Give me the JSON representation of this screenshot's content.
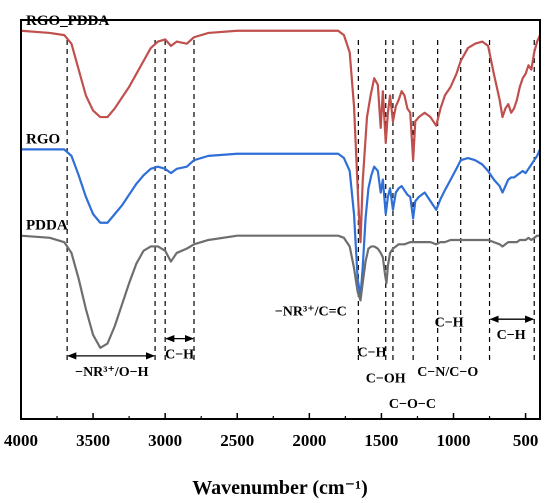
{
  "chart_data": {
    "type": "line",
    "title": "",
    "xlabel": "Wavenumber (cm⁻¹)",
    "ylabel": "",
    "xlim": [
      4000,
      400
    ],
    "x_reversed": true,
    "x_ticks": [
      "4000",
      "3500",
      "3000",
      "2500",
      "2000",
      "1500",
      "1000",
      "500"
    ],
    "y_ticks_shown": false,
    "grid": false,
    "series": [
      {
        "name": "RGO_PDDA",
        "color": "#c0504d",
        "offset": 0.55,
        "points": [
          [
            4000,
            0.0
          ],
          [
            3800,
            -0.01
          ],
          [
            3700,
            -0.02
          ],
          [
            3650,
            -0.06
          ],
          [
            3600,
            -0.18
          ],
          [
            3550,
            -0.3
          ],
          [
            3500,
            -0.37
          ],
          [
            3450,
            -0.4
          ],
          [
            3400,
            -0.4
          ],
          [
            3350,
            -0.36
          ],
          [
            3300,
            -0.31
          ],
          [
            3250,
            -0.26
          ],
          [
            3200,
            -0.2
          ],
          [
            3150,
            -0.14
          ],
          [
            3100,
            -0.08
          ],
          [
            3050,
            -0.05
          ],
          [
            3000,
            -0.04
          ],
          [
            2960,
            -0.07
          ],
          [
            2920,
            -0.05
          ],
          [
            2850,
            -0.06
          ],
          [
            2800,
            -0.03
          ],
          [
            2700,
            -0.01
          ],
          [
            2500,
            0.0
          ],
          [
            2300,
            0.0
          ],
          [
            2100,
            0.0
          ],
          [
            1900,
            0.0
          ],
          [
            1800,
            0.0
          ],
          [
            1760,
            -0.02
          ],
          [
            1720,
            -0.1
          ],
          [
            1690,
            -0.35
          ],
          [
            1660,
            -0.8
          ],
          [
            1645,
            -0.98
          ],
          [
            1630,
            -0.7
          ],
          [
            1600,
            -0.4
          ],
          [
            1575,
            -0.3
          ],
          [
            1550,
            -0.22
          ],
          [
            1525,
            -0.25
          ],
          [
            1505,
            -0.45
          ],
          [
            1490,
            -0.28
          ],
          [
            1470,
            -0.52
          ],
          [
            1455,
            -0.38
          ],
          [
            1440,
            -0.3
          ],
          [
            1420,
            -0.42
          ],
          [
            1400,
            -0.35
          ],
          [
            1380,
            -0.32
          ],
          [
            1360,
            -0.28
          ],
          [
            1340,
            -0.3
          ],
          [
            1320,
            -0.36
          ],
          [
            1300,
            -0.38
          ],
          [
            1280,
            -0.6
          ],
          [
            1265,
            -0.42
          ],
          [
            1240,
            -0.4
          ],
          [
            1200,
            -0.38
          ],
          [
            1160,
            -0.4
          ],
          [
            1120,
            -0.44
          ],
          [
            1090,
            -0.36
          ],
          [
            1060,
            -0.3
          ],
          [
            1020,
            -0.26
          ],
          [
            980,
            -0.2
          ],
          [
            950,
            -0.14
          ],
          [
            900,
            -0.08
          ],
          [
            850,
            -0.06
          ],
          [
            800,
            -0.05
          ],
          [
            760,
            -0.07
          ],
          [
            720,
            -0.2
          ],
          [
            680,
            -0.32
          ],
          [
            660,
            -0.4
          ],
          [
            640,
            -0.36
          ],
          [
            620,
            -0.34
          ],
          [
            600,
            -0.38
          ],
          [
            580,
            -0.36
          ],
          [
            560,
            -0.32
          ],
          [
            540,
            -0.26
          ],
          [
            520,
            -0.22
          ],
          [
            500,
            -0.2
          ],
          [
            480,
            -0.16
          ],
          [
            460,
            -0.18
          ],
          [
            440,
            -0.1
          ],
          [
            420,
            -0.05
          ],
          [
            400,
            -0.02
          ]
        ]
      },
      {
        "name": "RGO",
        "color": "#2f6fd6",
        "offset": 0.0,
        "points": [
          [
            4000,
            0.0
          ],
          [
            3800,
            0.0
          ],
          [
            3700,
            0.0
          ],
          [
            3650,
            -0.03
          ],
          [
            3600,
            -0.12
          ],
          [
            3550,
            -0.22
          ],
          [
            3500,
            -0.3
          ],
          [
            3450,
            -0.34
          ],
          [
            3400,
            -0.34
          ],
          [
            3350,
            -0.3
          ],
          [
            3300,
            -0.26
          ],
          [
            3250,
            -0.21
          ],
          [
            3200,
            -0.16
          ],
          [
            3150,
            -0.12
          ],
          [
            3100,
            -0.09
          ],
          [
            3050,
            -0.08
          ],
          [
            3000,
            -0.09
          ],
          [
            2960,
            -0.11
          ],
          [
            2920,
            -0.09
          ],
          [
            2850,
            -0.08
          ],
          [
            2800,
            -0.05
          ],
          [
            2700,
            -0.03
          ],
          [
            2500,
            -0.02
          ],
          [
            2300,
            -0.02
          ],
          [
            2100,
            -0.02
          ],
          [
            1900,
            -0.02
          ],
          [
            1800,
            -0.02
          ],
          [
            1760,
            -0.04
          ],
          [
            1720,
            -0.1
          ],
          [
            1690,
            -0.3
          ],
          [
            1665,
            -0.6
          ],
          [
            1645,
            -0.68
          ],
          [
            1630,
            -0.55
          ],
          [
            1610,
            -0.32
          ],
          [
            1590,
            -0.18
          ],
          [
            1570,
            -0.12
          ],
          [
            1550,
            -0.08
          ],
          [
            1525,
            -0.1
          ],
          [
            1505,
            -0.2
          ],
          [
            1490,
            -0.14
          ],
          [
            1470,
            -0.3
          ],
          [
            1455,
            -0.22
          ],
          [
            1440,
            -0.18
          ],
          [
            1420,
            -0.28
          ],
          [
            1400,
            -0.2
          ],
          [
            1380,
            -0.18
          ],
          [
            1360,
            -0.17
          ],
          [
            1340,
            -0.19
          ],
          [
            1320,
            -0.21
          ],
          [
            1300,
            -0.22
          ],
          [
            1280,
            -0.32
          ],
          [
            1265,
            -0.24
          ],
          [
            1240,
            -0.22
          ],
          [
            1200,
            -0.2
          ],
          [
            1160,
            -0.24
          ],
          [
            1120,
            -0.28
          ],
          [
            1090,
            -0.23
          ],
          [
            1060,
            -0.19
          ],
          [
            1020,
            -0.14
          ],
          [
            980,
            -0.09
          ],
          [
            950,
            -0.05
          ],
          [
            900,
            -0.04
          ],
          [
            850,
            -0.05
          ],
          [
            800,
            -0.07
          ],
          [
            760,
            -0.1
          ],
          [
            720,
            -0.14
          ],
          [
            680,
            -0.17
          ],
          [
            660,
            -0.2
          ],
          [
            640,
            -0.17
          ],
          [
            620,
            -0.14
          ],
          [
            600,
            -0.13
          ],
          [
            580,
            -0.13
          ],
          [
            560,
            -0.12
          ],
          [
            540,
            -0.11
          ],
          [
            520,
            -0.1
          ],
          [
            500,
            -0.11
          ],
          [
            480,
            -0.09
          ],
          [
            460,
            -0.07
          ],
          [
            440,
            -0.05
          ],
          [
            420,
            -0.03
          ],
          [
            400,
            0.0
          ]
        ]
      },
      {
        "name": "PDDA",
        "color": "#6e6e6e",
        "offset": -0.4,
        "points": [
          [
            4000,
            0.0
          ],
          [
            3800,
            -0.01
          ],
          [
            3700,
            -0.03
          ],
          [
            3650,
            -0.08
          ],
          [
            3600,
            -0.2
          ],
          [
            3550,
            -0.34
          ],
          [
            3500,
            -0.46
          ],
          [
            3450,
            -0.52
          ],
          [
            3400,
            -0.5
          ],
          [
            3350,
            -0.42
          ],
          [
            3300,
            -0.32
          ],
          [
            3250,
            -0.22
          ],
          [
            3200,
            -0.13
          ],
          [
            3150,
            -0.07
          ],
          [
            3100,
            -0.05
          ],
          [
            3050,
            -0.05
          ],
          [
            3000,
            -0.07
          ],
          [
            2960,
            -0.12
          ],
          [
            2920,
            -0.08
          ],
          [
            2850,
            -0.06
          ],
          [
            2800,
            -0.04
          ],
          [
            2700,
            -0.02
          ],
          [
            2500,
            0.0
          ],
          [
            2300,
            0.0
          ],
          [
            2100,
            0.0
          ],
          [
            1900,
            0.0
          ],
          [
            1800,
            0.0
          ],
          [
            1760,
            -0.01
          ],
          [
            1720,
            -0.05
          ],
          [
            1690,
            -0.15
          ],
          [
            1665,
            -0.26
          ],
          [
            1645,
            -0.3
          ],
          [
            1630,
            -0.22
          ],
          [
            1610,
            -0.12
          ],
          [
            1590,
            -0.06
          ],
          [
            1570,
            -0.05
          ],
          [
            1550,
            -0.05
          ],
          [
            1525,
            -0.06
          ],
          [
            1505,
            -0.08
          ],
          [
            1490,
            -0.1
          ],
          [
            1475,
            -0.18
          ],
          [
            1465,
            -0.22
          ],
          [
            1455,
            -0.14
          ],
          [
            1440,
            -0.08
          ],
          [
            1420,
            -0.06
          ],
          [
            1400,
            -0.05
          ],
          [
            1380,
            -0.04
          ],
          [
            1360,
            -0.04
          ],
          [
            1340,
            -0.04
          ],
          [
            1300,
            -0.03
          ],
          [
            1260,
            -0.03
          ],
          [
            1200,
            -0.03
          ],
          [
            1160,
            -0.03
          ],
          [
            1120,
            -0.04
          ],
          [
            1090,
            -0.03
          ],
          [
            1060,
            -0.03
          ],
          [
            1020,
            -0.02
          ],
          [
            980,
            -0.02
          ],
          [
            950,
            -0.02
          ],
          [
            900,
            -0.02
          ],
          [
            850,
            -0.02
          ],
          [
            800,
            -0.02
          ],
          [
            760,
            -0.02
          ],
          [
            720,
            -0.03
          ],
          [
            680,
            -0.04
          ],
          [
            660,
            -0.05
          ],
          [
            640,
            -0.04
          ],
          [
            620,
            -0.03
          ],
          [
            600,
            -0.03
          ],
          [
            580,
            -0.03
          ],
          [
            560,
            -0.03
          ],
          [
            540,
            -0.02
          ],
          [
            520,
            -0.02
          ],
          [
            500,
            -0.02
          ],
          [
            480,
            -0.01
          ],
          [
            460,
            -0.02
          ],
          [
            440,
            -0.01
          ],
          [
            420,
            0.0
          ],
          [
            400,
            0.0
          ]
        ]
      }
    ],
    "reference_lines": [
      3680,
      3070,
      3000,
      2800,
      1660,
      1470,
      1420,
      1280,
      1110,
      950,
      750,
      440
    ],
    "annotations": [
      {
        "text": "−NR³⁺/O−H",
        "x": 3370,
        "y": -1.05,
        "bracket": [
          3680,
          3070
        ]
      },
      {
        "text": "C−H",
        "x": 2900,
        "y": -0.97,
        "bracket": [
          3000,
          2800
        ]
      },
      {
        "text": "−NR³⁺/C=C",
        "x": 1990,
        "y": -0.77,
        "bracket": null
      },
      {
        "text": "C−H",
        "x": 1565,
        "y": -0.96,
        "bracket": null
      },
      {
        "text": "C−OH",
        "x": 1470,
        "y": -1.08,
        "bracket": null
      },
      {
        "text": "C−O−C",
        "x": 1285,
        "y": -1.2,
        "bracket": null
      },
      {
        "text": "C−N/C−O",
        "x": 1040,
        "y": -1.05,
        "bracket": null
      },
      {
        "text": "C−H",
        "x": 1030,
        "y": -0.82,
        "bracket": null
      },
      {
        "text": "C−H",
        "x": 600,
        "y": -0.88,
        "bracket": [
          750,
          440
        ]
      }
    ]
  }
}
